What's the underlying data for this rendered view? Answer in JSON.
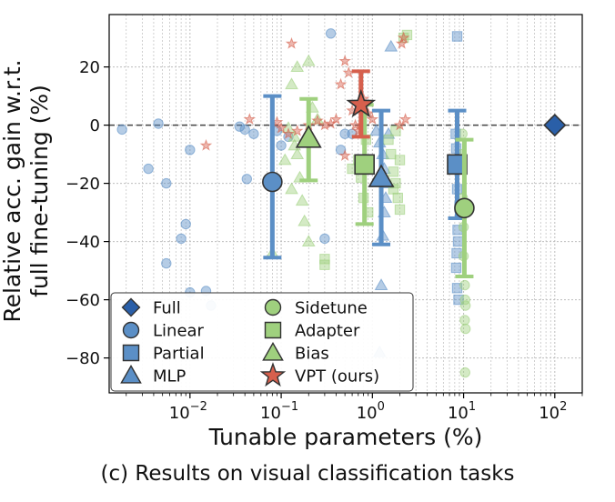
{
  "caption": "(c) Results on visual classification tasks",
  "chart_data": {
    "type": "scatter",
    "xlabel": "Tunable parameters (%)",
    "ylabel_line1": "Relative acc. gain w.r.t.",
    "ylabel_line2": "full fine-tuning (%)",
    "xscale": "log",
    "xlim": [
      0.0013,
      200
    ],
    "ylim": [
      -92,
      38
    ],
    "x_ticks": [
      {
        "value": 0.01,
        "base": "10",
        "exp": "−2"
      },
      {
        "value": 0.1,
        "base": "10",
        "exp": "−1"
      },
      {
        "value": 1,
        "base": "10",
        "exp": "0"
      },
      {
        "value": 10,
        "base": "10",
        "exp": "1"
      },
      {
        "value": 100,
        "base": "10",
        "exp": "2"
      }
    ],
    "y_ticks": [
      {
        "value": 20,
        "label": "20"
      },
      {
        "value": 0,
        "label": "0"
      },
      {
        "value": -20,
        "label": "−20"
      },
      {
        "value": -40,
        "label": "−40"
      },
      {
        "value": -60,
        "label": "−60"
      },
      {
        "value": -80,
        "label": "−80"
      }
    ],
    "grid": true,
    "reference_line_y": 0,
    "legend_position": "lower-left",
    "legend": [
      {
        "label": "Full",
        "marker": "diamond",
        "color": "#2a5fa8"
      },
      {
        "label": "Linear",
        "marker": "circle",
        "color": "#5b8fc6"
      },
      {
        "label": "Partial",
        "marker": "square",
        "color": "#5b8fc6"
      },
      {
        "label": "MLP",
        "marker": "triangle",
        "color": "#5b8fc6"
      },
      {
        "label": "Sidetune",
        "marker": "circle",
        "color": "#9fd07e"
      },
      {
        "label": "Adapter",
        "marker": "square",
        "color": "#9fd07e"
      },
      {
        "label": "Bias",
        "marker": "triangle",
        "color": "#9fd07e"
      },
      {
        "label": "VPT (ours)",
        "marker": "star",
        "color": "#d6604d"
      }
    ],
    "summary": [
      {
        "method": "Full",
        "x": 100,
        "y": 0,
        "marker": "diamond",
        "color": "#2a5fa8"
      },
      {
        "method": "Linear",
        "x": 0.08,
        "y": -19.5,
        "err_low": -45.5,
        "err_high": 10,
        "marker": "circle",
        "color": "#5b8fc6"
      },
      {
        "method": "MLP",
        "x": 1.25,
        "y": -18,
        "err_low": -41,
        "err_high": 5,
        "marker": "triangle",
        "color": "#5b8fc6"
      },
      {
        "method": "Partial",
        "x": 8.5,
        "y": -13.5,
        "err_low": -32,
        "err_high": 5,
        "marker": "square",
        "color": "#5b8fc6"
      },
      {
        "method": "Bias",
        "x": 0.2,
        "y": -4.5,
        "err_low": -19,
        "err_high": 9,
        "marker": "triangle",
        "color": "#9fd07e"
      },
      {
        "method": "Adapter",
        "x": 0.82,
        "y": -13.5,
        "err_low": -34,
        "err_high": 7,
        "marker": "square",
        "color": "#9fd07e"
      },
      {
        "method": "Sidetune",
        "x": 10.2,
        "y": -28.5,
        "err_low": -52,
        "err_high": -5,
        "marker": "circle",
        "color": "#9fd07e"
      },
      {
        "method": "VPT (ours)",
        "x": 0.75,
        "y": 7,
        "err_low": -4,
        "err_high": 18.5,
        "marker": "star",
        "color": "#d6604d"
      }
    ],
    "task_points": [
      {
        "method": "Linear",
        "marker": "circle",
        "color": "#5b8fc6",
        "points": [
          [
            0.0018,
            -1.5
          ],
          [
            0.0035,
            -15
          ],
          [
            0.0045,
            0.5
          ],
          [
            0.0055,
            -20
          ],
          [
            0.0055,
            -47.5
          ],
          [
            0.008,
            -39
          ],
          [
            0.009,
            -34
          ],
          [
            0.01,
            -8.5
          ],
          [
            0.01,
            -57.5
          ],
          [
            0.015,
            -57
          ],
          [
            0.017,
            -62
          ],
          [
            0.035,
            -0.5
          ],
          [
            0.04,
            -1.5
          ],
          [
            0.042,
            -18.5
          ],
          [
            0.05,
            -3
          ],
          [
            0.1,
            -7
          ],
          [
            0.12,
            -4
          ],
          [
            0.3,
            -39
          ],
          [
            0.35,
            31.5
          ],
          [
            0.45,
            -8.5
          ],
          [
            0.5,
            -3
          ],
          [
            0.6,
            -3
          ],
          [
            0.09,
            -2
          ]
        ]
      },
      {
        "method": "MLP",
        "marker": "triangle",
        "color": "#5b8fc6",
        "points": [
          [
            1.1,
            -2
          ],
          [
            1.2,
            -6
          ],
          [
            1.3,
            -10
          ],
          [
            1.35,
            -15
          ],
          [
            1.4,
            -25
          ],
          [
            1.3,
            -38
          ],
          [
            1.25,
            -55
          ],
          [
            1.2,
            -78
          ],
          [
            1.6,
            27
          ],
          [
            1.5,
            -3
          ],
          [
            1.45,
            -20
          ],
          [
            1.35,
            -30
          ]
        ]
      },
      {
        "method": "Partial",
        "marker": "square",
        "color": "#5b8fc6",
        "points": [
          [
            8.5,
            30.5
          ],
          [
            8.2,
            -3
          ],
          [
            8.3,
            -8
          ],
          [
            8.4,
            -15
          ],
          [
            8.5,
            -22
          ],
          [
            8.6,
            -36
          ],
          [
            8.7,
            -40
          ],
          [
            8.4,
            -44
          ],
          [
            8.3,
            -49
          ],
          [
            8.5,
            -56
          ],
          [
            8.8,
            -60
          ],
          [
            9.0,
            -28
          ]
        ]
      },
      {
        "method": "Bias",
        "marker": "triangle",
        "color": "#9fd07e",
        "points": [
          [
            0.08,
            -44
          ],
          [
            0.12,
            -1
          ],
          [
            0.14,
            -4
          ],
          [
            0.15,
            -10
          ],
          [
            0.16,
            -18
          ],
          [
            0.17,
            -26
          ],
          [
            0.18,
            -33
          ],
          [
            0.2,
            -40
          ],
          [
            0.13,
            14
          ],
          [
            0.15,
            20
          ],
          [
            0.2,
            22
          ],
          [
            0.22,
            6
          ],
          [
            0.25,
            2
          ],
          [
            0.14,
            -7
          ],
          [
            0.11,
            -12
          ],
          [
            0.13,
            -22
          ]
        ]
      },
      {
        "method": "Adapter",
        "marker": "square",
        "color": "#9fd07e",
        "points": [
          [
            0.3,
            -46
          ],
          [
            0.3,
            -48
          ],
          [
            0.6,
            -15
          ],
          [
            0.7,
            -12
          ],
          [
            0.75,
            -18
          ],
          [
            0.8,
            -25
          ],
          [
            0.85,
            -5
          ],
          [
            0.9,
            -30
          ],
          [
            1.5,
            -5
          ],
          [
            1.6,
            -10
          ],
          [
            1.7,
            -16
          ],
          [
            1.8,
            -20
          ],
          [
            1.9,
            -25
          ],
          [
            2.0,
            -29
          ],
          [
            1.8,
            -2
          ],
          [
            2.2,
            30
          ],
          [
            2.4,
            31
          ],
          [
            2.0,
            -12
          ],
          [
            1.7,
            -22
          ]
        ]
      },
      {
        "method": "Sidetune",
        "marker": "circle",
        "color": "#9fd07e",
        "points": [
          [
            9.5,
            -10
          ],
          [
            9.8,
            -25
          ],
          [
            10,
            -35
          ],
          [
            10,
            -45
          ],
          [
            10.3,
            -55
          ],
          [
            10.4,
            -60
          ],
          [
            10.5,
            -62
          ],
          [
            10.3,
            -67
          ],
          [
            10.5,
            -70
          ],
          [
            10.4,
            -85
          ],
          [
            9.7,
            -3
          ],
          [
            9.9,
            -30
          ]
        ]
      },
      {
        "method": "VPT (ours)",
        "marker": "star",
        "color": "#d6604d",
        "points": [
          [
            0.015,
            -7
          ],
          [
            0.045,
            2
          ],
          [
            0.09,
            1
          ],
          [
            0.1,
            -1
          ],
          [
            0.13,
            28
          ],
          [
            0.15,
            -2
          ],
          [
            0.2,
            0
          ],
          [
            0.25,
            1.5
          ],
          [
            0.3,
            0
          ],
          [
            0.35,
            0.5
          ],
          [
            0.4,
            2
          ],
          [
            0.45,
            14
          ],
          [
            0.5,
            22
          ],
          [
            0.5,
            -10.5
          ],
          [
            0.55,
            18
          ],
          [
            0.6,
            5
          ],
          [
            0.65,
            0
          ],
          [
            0.7,
            -2
          ],
          [
            0.8,
            9
          ],
          [
            0.9,
            4
          ],
          [
            1.0,
            2
          ],
          [
            2.0,
            0
          ],
          [
            2.1,
            28
          ],
          [
            2.2,
            30
          ],
          [
            2.3,
            2
          ],
          [
            0.12,
            -3
          ]
        ]
      }
    ]
  }
}
